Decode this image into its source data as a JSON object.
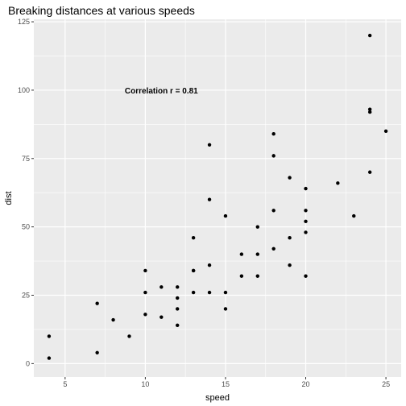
{
  "chart_data": {
    "type": "scatter",
    "title": "Breaking distances at various speeds",
    "xlabel": "speed",
    "ylabel": "dist",
    "xlim": [
      3.05,
      25.95
    ],
    "ylim": [
      -4.9,
      125.9
    ],
    "xticks": [
      5,
      10,
      15,
      20,
      25
    ],
    "yticks": [
      0,
      25,
      50,
      75,
      100,
      125
    ],
    "grid": true,
    "annotation": {
      "text": "Correlation r = 0.81",
      "x": 11,
      "y": 100
    },
    "x": [
      4,
      4,
      7,
      7,
      8,
      9,
      10,
      10,
      10,
      11,
      11,
      12,
      12,
      12,
      12,
      13,
      13,
      13,
      13,
      14,
      14,
      14,
      14,
      15,
      15,
      15,
      16,
      16,
      17,
      17,
      17,
      18,
      18,
      18,
      18,
      19,
      19,
      19,
      20,
      20,
      20,
      20,
      20,
      22,
      23,
      24,
      24,
      24,
      24,
      25
    ],
    "y": [
      2,
      10,
      4,
      22,
      16,
      10,
      18,
      26,
      34,
      17,
      28,
      14,
      20,
      24,
      28,
      26,
      34,
      34,
      46,
      26,
      36,
      60,
      80,
      20,
      26,
      54,
      32,
      40,
      32,
      40,
      50,
      42,
      56,
      76,
      84,
      36,
      46,
      68,
      32,
      48,
      52,
      56,
      64,
      66,
      54,
      70,
      92,
      93,
      120,
      85
    ]
  },
  "colors": {
    "panel_background": "#ebebeb",
    "grid_major": "#ffffff",
    "point": "#000000",
    "tick_text": "#4d4d4d",
    "tick_mark": "#333333"
  }
}
